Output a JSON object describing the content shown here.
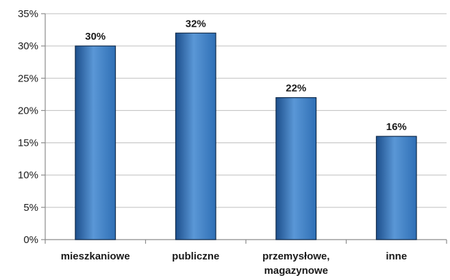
{
  "chart_data": {
    "type": "bar",
    "categories": [
      "mieszkaniowe",
      "publiczne",
      "przemysłowe, magazynowe",
      "inne"
    ],
    "category_lines": [
      [
        "mieszkaniowe"
      ],
      [
        "publiczne"
      ],
      [
        "przemysłowe,",
        "magazynowe"
      ],
      [
        "inne"
      ]
    ],
    "values": [
      30,
      32,
      22,
      16
    ],
    "data_labels": [
      "30%",
      "32%",
      "22%",
      "16%"
    ],
    "ylim": [
      0,
      35
    ],
    "yticks": [
      0,
      5,
      10,
      15,
      20,
      25,
      30,
      35
    ],
    "ytick_labels": [
      "0%",
      "5%",
      "10%",
      "15%",
      "20%",
      "25%",
      "30%",
      "35%"
    ],
    "grid": true,
    "bar_color": "#2f6fb5",
    "bar_color_light": "#5a97d6",
    "bar_color_dark": "#1d4f8c"
  }
}
